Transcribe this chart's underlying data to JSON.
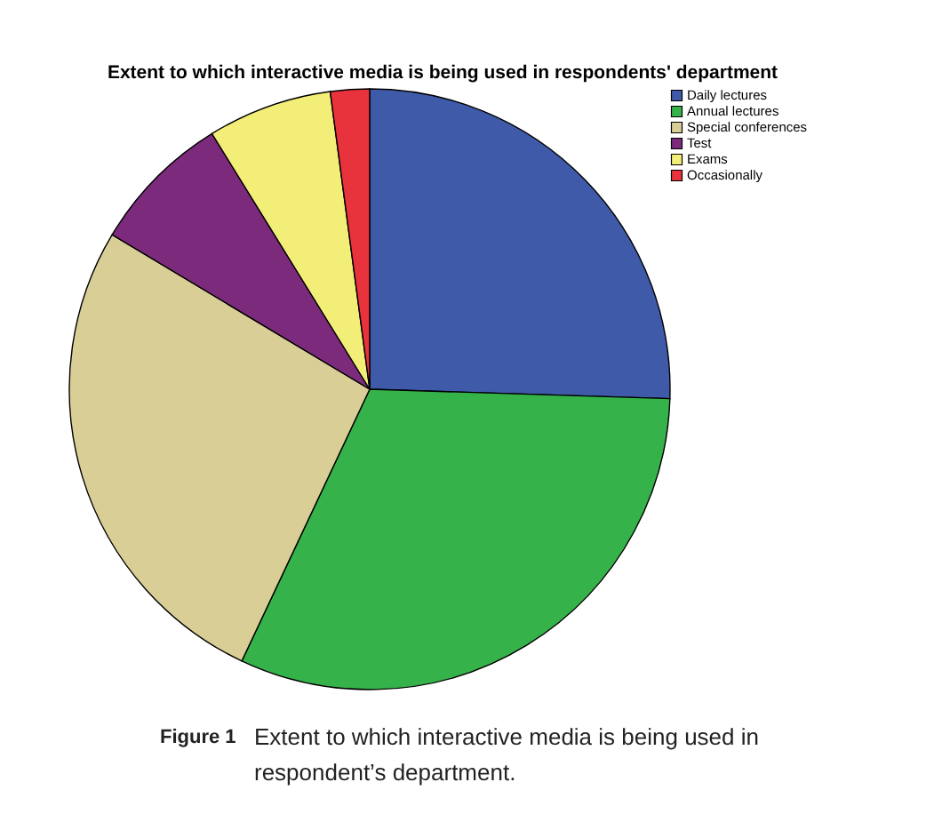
{
  "chart_data": {
    "type": "pie",
    "title": "Extent to which interactive media is being used in respondents' department",
    "categories": [
      "Daily lectures",
      "Annual lectures",
      "Special conferences",
      "Test",
      "Exams",
      "Occasionally"
    ],
    "values": [
      25.5,
      31.5,
      26.6,
      7.6,
      6.7,
      2.1
    ],
    "colors": [
      "#3f5aa8",
      "#35b34a",
      "#d8ce96",
      "#7b2a7c",
      "#f3ee78",
      "#e8323c"
    ],
    "legend": "top right",
    "annotations": [
      "Figure 1",
      "Extent to which interactive media is being used in respondent’s department."
    ]
  }
}
